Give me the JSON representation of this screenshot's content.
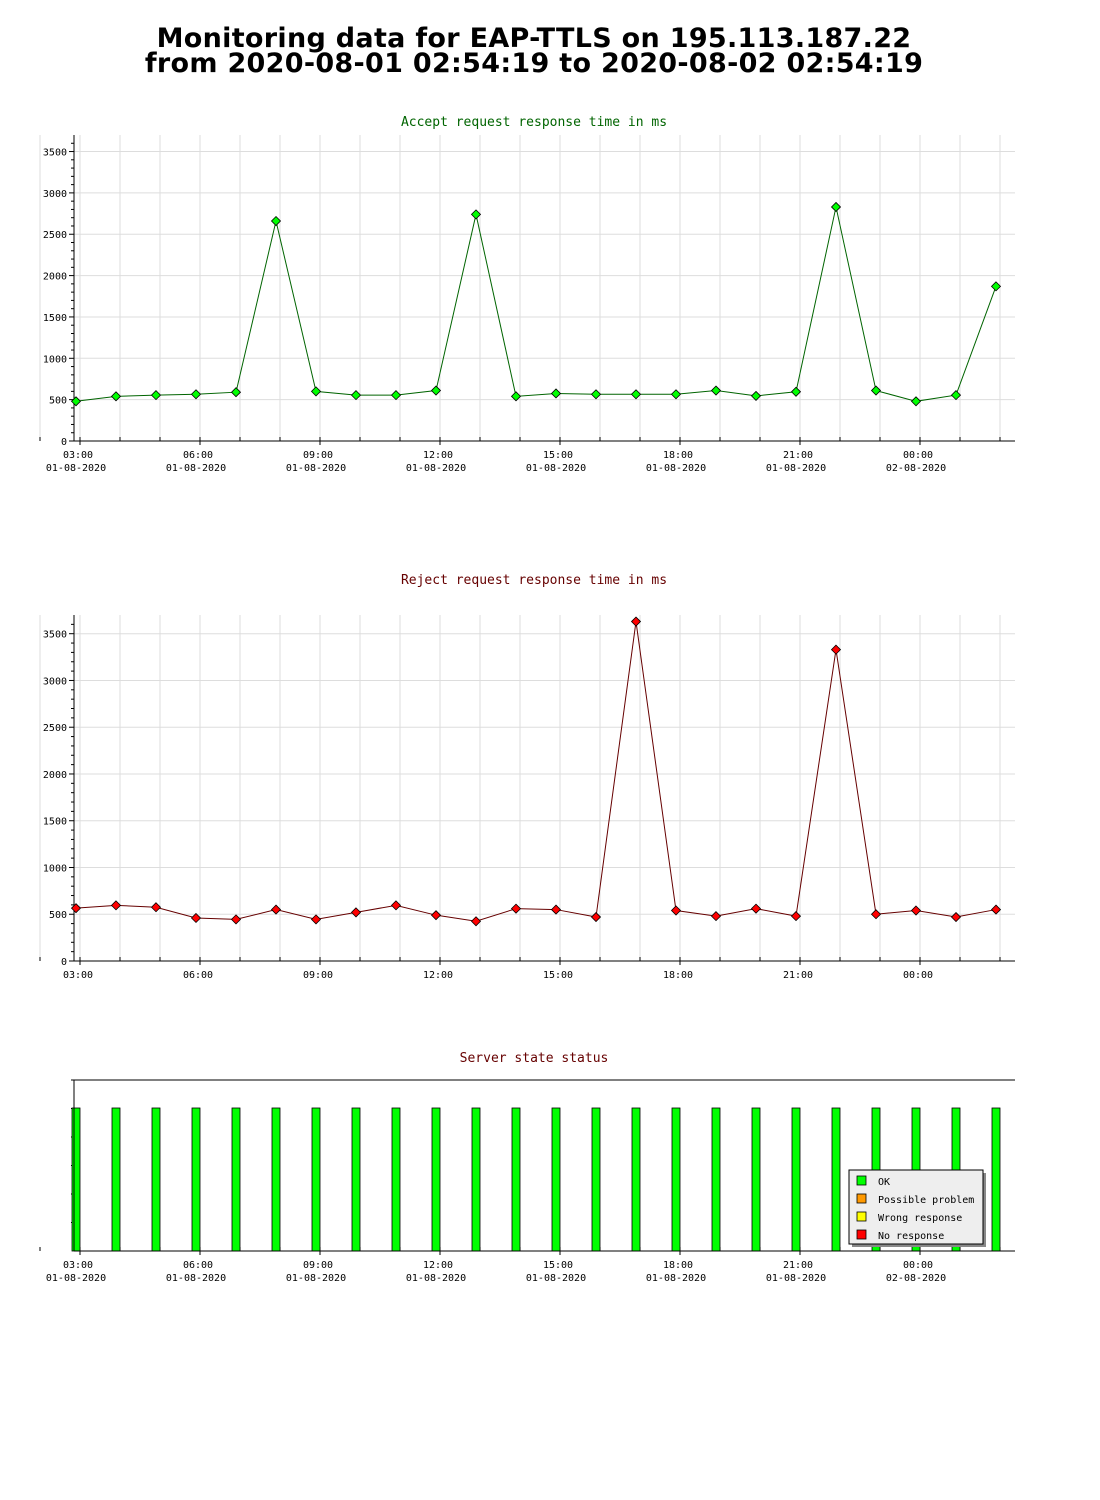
{
  "header": {
    "title_line1": "Monitoring data for EAP-TTLS on 195.113.187.22",
    "title_line2": "from 2020-08-01 02:54:19 to 2020-08-02 02:54:19"
  },
  "x_ticks": [
    {
      "time": "03:00",
      "date": "01-08-2020"
    },
    {
      "time": "06:00",
      "date": "01-08-2020"
    },
    {
      "time": "09:00",
      "date": "01-08-2020"
    },
    {
      "time": "12:00",
      "date": "01-08-2020"
    },
    {
      "time": "15:00",
      "date": "01-08-2020"
    },
    {
      "time": "18:00",
      "date": "01-08-2020"
    },
    {
      "time": "21:00",
      "date": "01-08-2020"
    },
    {
      "time": "00:00",
      "date": "02-08-2020"
    }
  ],
  "chart_data": [
    {
      "type": "line",
      "title": "Accept request response time in ms",
      "x": [
        "02:54",
        "03:54",
        "04:54",
        "05:54",
        "06:54",
        "07:54",
        "08:54",
        "09:54",
        "10:54",
        "11:54",
        "12:54",
        "13:54",
        "14:54",
        "15:54",
        "16:54",
        "17:54",
        "18:54",
        "19:54",
        "20:54",
        "21:54",
        "22:54",
        "23:54",
        "00:54",
        "01:54"
      ],
      "values": [
        480,
        540,
        555,
        565,
        590,
        2660,
        600,
        555,
        555,
        610,
        2740,
        540,
        575,
        565,
        565,
        565,
        610,
        545,
        595,
        2830,
        610,
        480,
        555,
        1870
      ],
      "xlim": [
        "2020-08-01 02:54:19",
        "2020-08-02 02:54:19"
      ],
      "ylim": [
        0,
        3700
      ],
      "yticks": [
        0,
        500,
        1000,
        1500,
        2000,
        2500,
        3000,
        3500
      ],
      "grid": true,
      "line_color": "#006400",
      "marker_color": "#00ff00",
      "title_color": "#006400"
    },
    {
      "type": "line",
      "title": "Reject request response time in ms",
      "x": [
        "02:54",
        "03:54",
        "04:54",
        "05:54",
        "06:54",
        "07:54",
        "08:54",
        "09:54",
        "10:54",
        "11:54",
        "12:54",
        "13:54",
        "14:54",
        "15:54",
        "16:54",
        "17:54",
        "18:54",
        "19:54",
        "20:54",
        "21:54",
        "22:54",
        "23:54",
        "00:54",
        "01:54"
      ],
      "values": [
        565,
        595,
        575,
        460,
        445,
        550,
        445,
        520,
        595,
        490,
        425,
        560,
        550,
        470,
        3630,
        540,
        480,
        560,
        480,
        3330,
        500,
        540,
        470,
        550
      ],
      "xlim": [
        "2020-08-01 02:54:19",
        "2020-08-02 02:54:19"
      ],
      "ylim": [
        0,
        3700
      ],
      "yticks": [
        0,
        500,
        1000,
        1500,
        2000,
        2500,
        3000,
        3500
      ],
      "grid": true,
      "line_color": "#660000",
      "marker_color": "#ff0000",
      "title_color": "#660000"
    },
    {
      "type": "bar",
      "title": "Server state status",
      "x": [
        "02:54",
        "03:54",
        "04:54",
        "05:54",
        "06:54",
        "07:54",
        "08:54",
        "09:54",
        "10:54",
        "11:54",
        "12:54",
        "13:54",
        "14:54",
        "15:54",
        "16:54",
        "17:54",
        "18:54",
        "19:54",
        "20:54",
        "21:54",
        "22:54",
        "23:54",
        "00:54",
        "01:54"
      ],
      "states": [
        "OK",
        "OK",
        "OK",
        "OK",
        "OK",
        "OK",
        "OK",
        "OK",
        "OK",
        "OK",
        "OK",
        "OK",
        "OK",
        "OK",
        "OK",
        "OK",
        "OK",
        "OK",
        "OK",
        "OK",
        "OK",
        "OK",
        "OK",
        "OK"
      ],
      "xlim": [
        "2020-08-01 02:54:19",
        "2020-08-02 02:54:19"
      ],
      "title_color": "#660000",
      "legend_position": "bottom-right",
      "legend": [
        {
          "label": "OK",
          "color": "#00ff00"
        },
        {
          "label": "Possible problem",
          "color": "#ff9900"
        },
        {
          "label": "Wrong response",
          "color": "#ffff00"
        },
        {
          "label": "No response",
          "color": "#ff0000"
        }
      ]
    }
  ]
}
